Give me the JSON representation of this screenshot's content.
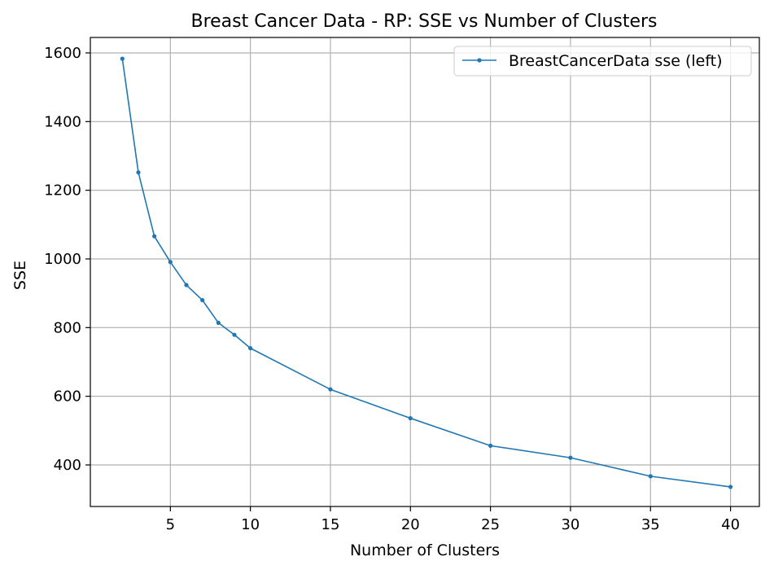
{
  "chart_data": {
    "type": "line",
    "title": "Breast Cancer Data - RP: SSE vs Number of Clusters",
    "xlabel": "Number of Clusters",
    "ylabel": "SSE",
    "xlim": [
      0,
      41.8
    ],
    "ylim": [
      279,
      1645
    ],
    "xticks": [
      5,
      10,
      15,
      20,
      25,
      30,
      35,
      40
    ],
    "yticks": [
      400,
      600,
      800,
      1000,
      1200,
      1400,
      1600
    ],
    "grid": true,
    "legend_position": "top-right",
    "series": [
      {
        "name": "BreastCancerData sse (left)",
        "color": "#1f77b4",
        "marker": "dot",
        "x": [
          2,
          3,
          4,
          5,
          6,
          7,
          8,
          9,
          10,
          15,
          20,
          25,
          30,
          35,
          40
        ],
        "y": [
          1583,
          1252,
          1066,
          991,
          924,
          880,
          814,
          779,
          740,
          620,
          536,
          456,
          421,
          367,
          336
        ]
      }
    ]
  }
}
